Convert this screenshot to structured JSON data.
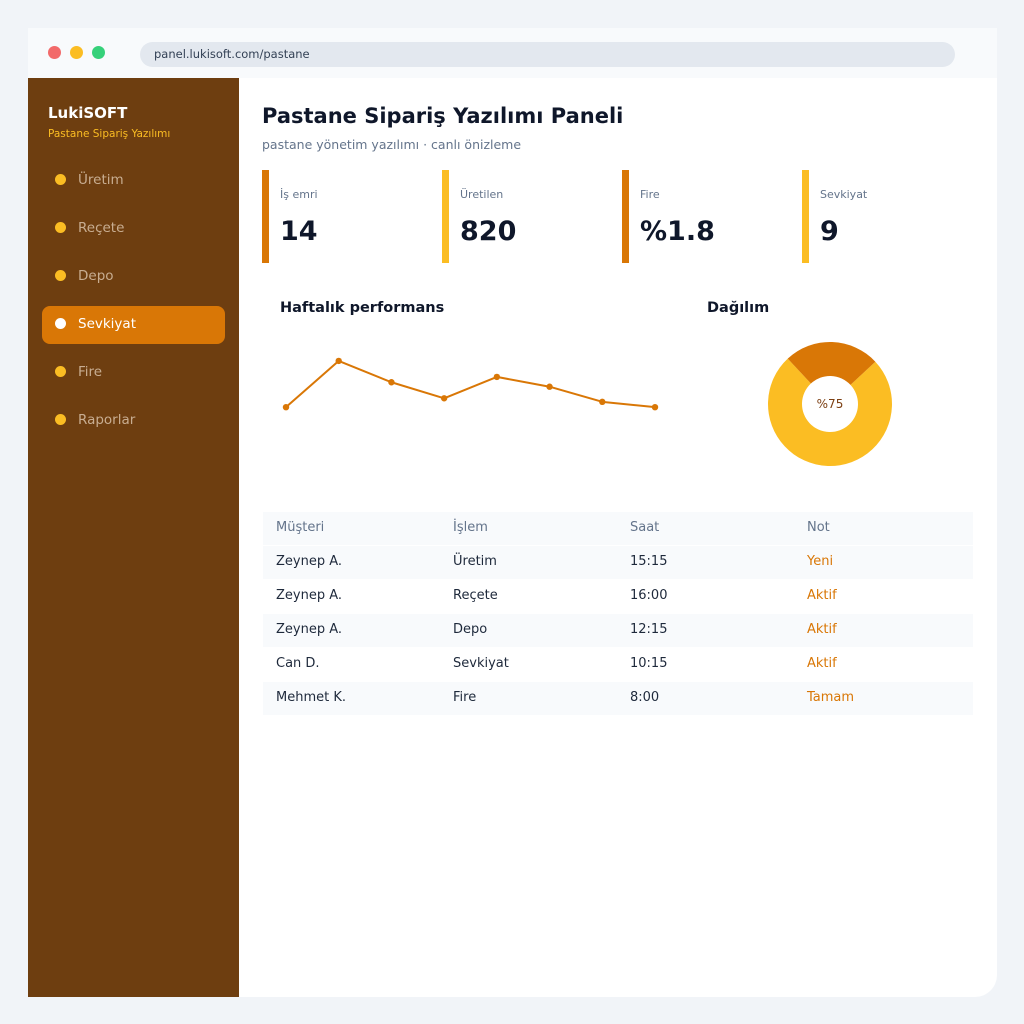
{
  "browser": {
    "url": "panel.lukisoft.com/pastane"
  },
  "sidebar": {
    "brand": "LukiSOFT",
    "brand_subtitle": "Pastane Sipariş Yazılımı",
    "items": [
      {
        "label": "Üretim",
        "active": false
      },
      {
        "label": "Reçete",
        "active": false
      },
      {
        "label": "Depo",
        "active": false
      },
      {
        "label": "Sevkiyat",
        "active": true
      },
      {
        "label": "Fire",
        "active": false
      },
      {
        "label": "Raporlar",
        "active": false
      }
    ]
  },
  "header": {
    "title": "Pastane Sipariş Yazılımı Paneli",
    "subtitle": "pastane yönetim yazılımı · canlı önizleme"
  },
  "kpis": [
    {
      "label": "İş emri",
      "value": "14"
    },
    {
      "label": "Üretilen",
      "value": "820"
    },
    {
      "label": "Fire",
      "value": "%1.8"
    },
    {
      "label": "Sevkiyat",
      "value": "9"
    }
  ],
  "performance": {
    "title": "Haftalık performans"
  },
  "distribution": {
    "title": "Dağılım",
    "center_label": "%75"
  },
  "chart_data": [
    {
      "type": "line",
      "title": "Haftalık performans",
      "x": [
        1,
        2,
        3,
        4,
        5,
        6,
        7,
        8
      ],
      "values": [
        38,
        90,
        66,
        48,
        72,
        61,
        44,
        38
      ],
      "ylim": [
        0,
        100
      ]
    },
    {
      "type": "pie",
      "title": "Dağılım",
      "values": [
        75,
        25
      ],
      "colors": [
        "#fbbd23",
        "#d97706"
      ]
    }
  ],
  "table": {
    "headers": [
      "Müşteri",
      "İşlem",
      "Saat",
      "Not"
    ],
    "rows": [
      [
        "Zeynep A.",
        "Üretim",
        "15:15",
        "Yeni"
      ],
      [
        "Zeynep A.",
        "Reçete",
        "16:00",
        "Aktif"
      ],
      [
        "Zeynep A.",
        "Depo",
        "12:15",
        "Aktif"
      ],
      [
        "Can D.",
        "Sevkiyat",
        "10:15",
        "Aktif"
      ],
      [
        "Mehmet K.",
        "Fire",
        "8:00",
        "Tamam"
      ]
    ]
  },
  "colors": {
    "sidebar": "#6e3e10",
    "accent": "#d97706",
    "accent_light": "#fbbd23"
  }
}
